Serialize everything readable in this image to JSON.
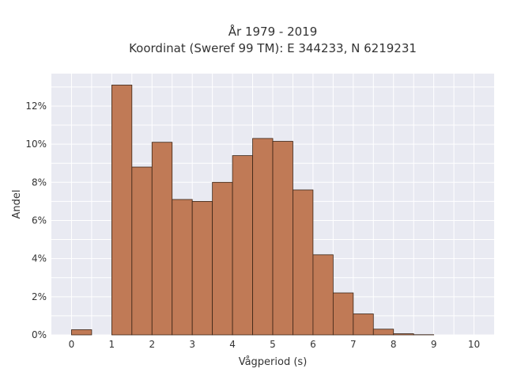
{
  "chart_data": {
    "type": "bar",
    "title_lines": [
      "År 1979 - 2019",
      "Koordinat (Sweref 99 TM): E 344233, N 6219231"
    ],
    "xlabel": "Vågperiod (s)",
    "ylabel": "Andel",
    "xlim": [
      -0.5,
      10.5
    ],
    "ylim": [
      0,
      0.137
    ],
    "x_ticks": [
      0,
      1,
      2,
      3,
      4,
      5,
      6,
      7,
      8,
      9,
      10
    ],
    "y_ticks": [
      0,
      0.02,
      0.04,
      0.06,
      0.08,
      0.1,
      0.12
    ],
    "y_tick_labels": [
      "0%",
      "2%",
      "4%",
      "6%",
      "8%",
      "10%",
      "12%"
    ],
    "grid": true,
    "colors": {
      "bar": "#c07a56",
      "plot_bg": "#e9eaf2",
      "grid": "#ffffff"
    },
    "bins": [
      {
        "x0": 0.0,
        "x1": 0.5,
        "value": 0.0027
      },
      {
        "x0": 0.5,
        "x1": 1.0,
        "value": 0.0
      },
      {
        "x0": 1.0,
        "x1": 1.5,
        "value": 0.131
      },
      {
        "x0": 1.5,
        "x1": 2.0,
        "value": 0.088
      },
      {
        "x0": 2.0,
        "x1": 2.5,
        "value": 0.101
      },
      {
        "x0": 2.5,
        "x1": 3.0,
        "value": 0.071
      },
      {
        "x0": 3.0,
        "x1": 3.5,
        "value": 0.07
      },
      {
        "x0": 3.5,
        "x1": 4.0,
        "value": 0.08
      },
      {
        "x0": 4.0,
        "x1": 4.5,
        "value": 0.094
      },
      {
        "x0": 4.5,
        "x1": 5.0,
        "value": 0.103
      },
      {
        "x0": 5.0,
        "x1": 5.5,
        "value": 0.1015
      },
      {
        "x0": 5.5,
        "x1": 6.0,
        "value": 0.076
      },
      {
        "x0": 6.0,
        "x1": 6.5,
        "value": 0.042
      },
      {
        "x0": 6.5,
        "x1": 7.0,
        "value": 0.022
      },
      {
        "x0": 7.0,
        "x1": 7.5,
        "value": 0.011
      },
      {
        "x0": 7.5,
        "x1": 8.0,
        "value": 0.003
      },
      {
        "x0": 8.0,
        "x1": 8.5,
        "value": 0.0006
      },
      {
        "x0": 8.5,
        "x1": 9.0,
        "value": 0.0001
      }
    ]
  }
}
